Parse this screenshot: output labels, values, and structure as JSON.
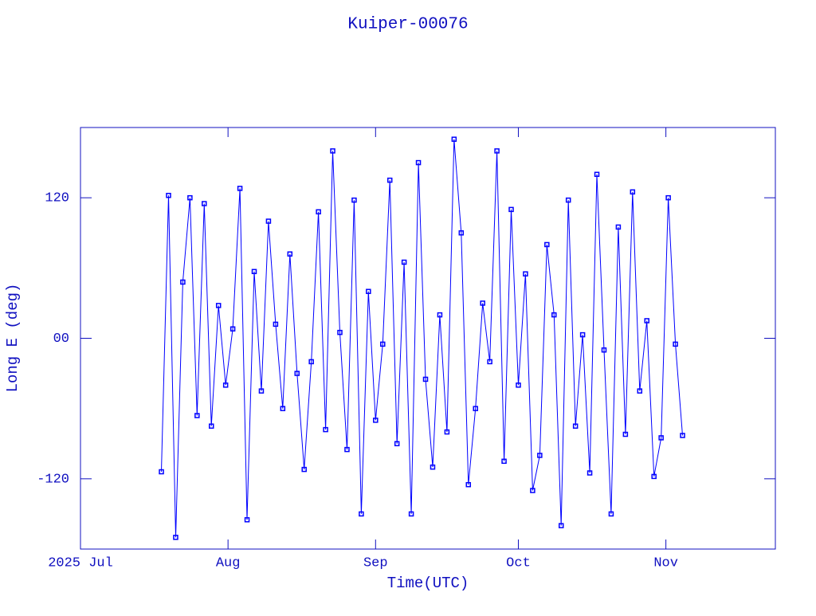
{
  "chart_data": {
    "type": "line",
    "title": "Kuiper-00076",
    "xlabel": "Time(UTC)",
    "ylabel": "Long E (deg)",
    "color": "#0000ff",
    "x": [
      17,
      18.5,
      20,
      21.5,
      23,
      24.5,
      26,
      27.5,
      29,
      30.5,
      32,
      33.5,
      35,
      36.5,
      38,
      39.5,
      41,
      42.5,
      44,
      45.5,
      47,
      48.5,
      50,
      51.5,
      53,
      54.5,
      56,
      57.5,
      59,
      60.5,
      62,
      63.5,
      65,
      66.5,
      68,
      69.5,
      71,
      72.5,
      74,
      75.5,
      77,
      78.5,
      80,
      81.5,
      83,
      84.5,
      86,
      87.5,
      89,
      90.5,
      92,
      93.5,
      95,
      96.5,
      98,
      99.5,
      101,
      102.5,
      104,
      105.5,
      107,
      108.5,
      110,
      111.5,
      113,
      114.5,
      116,
      117.5,
      119,
      120.5,
      122,
      123.5,
      125,
      126.5
    ],
    "values": [
      -114,
      122,
      -170,
      48,
      120,
      -66,
      115,
      -75,
      28,
      -40,
      8,
      128,
      -155,
      57,
      -45,
      100,
      12,
      -60,
      72,
      -30,
      -112,
      -20,
      108,
      -78,
      160,
      5,
      -95,
      118,
      -150,
      40,
      -70,
      -5,
      135,
      -90,
      65,
      -150,
      150,
      -35,
      -110,
      20,
      -80,
      170,
      90,
      -125,
      -60,
      30,
      -20,
      160,
      -105,
      110,
      -40,
      55,
      -130,
      -100,
      80,
      20,
      -160,
      118,
      -75,
      3,
      -115,
      140,
      -10,
      -150,
      95,
      -82,
      125,
      -45,
      15,
      -118,
      -85,
      120,
      -5,
      -83
    ],
    "xlim": [
      0,
      146
    ],
    "xticks": [
      {
        "value": 0,
        "label": "2025 Jul"
      },
      {
        "value": 31,
        "label": "Aug"
      },
      {
        "value": 62,
        "label": "Sep"
      },
      {
        "value": 92,
        "label": "Oct"
      },
      {
        "value": 123,
        "label": "Nov"
      }
    ],
    "ylim": [
      -180,
      180
    ],
    "yticks": [
      -120,
      {
        "value": 0,
        "label": "00"
      },
      120
    ]
  }
}
